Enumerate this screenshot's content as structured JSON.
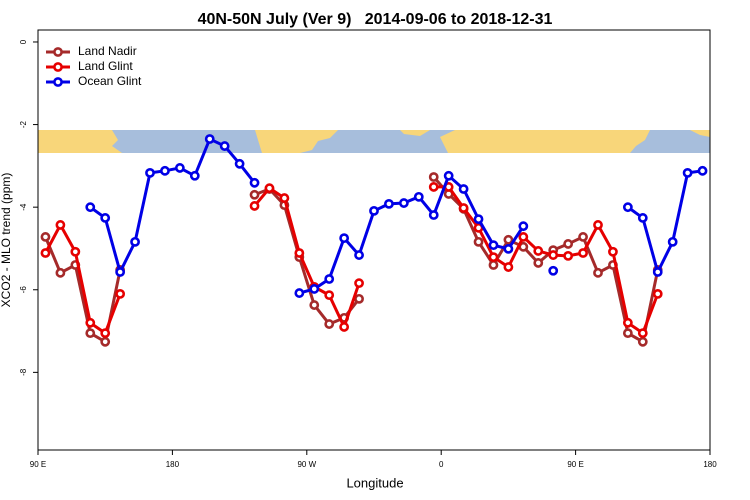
{
  "chart_data": {
    "type": "line",
    "title": "40N-50N July (Ver 9)   2014-09-06 to 2018-12-31",
    "x_label": "Longitude",
    "y_label": "XCO2 - MLO trend (ppm)",
    "x": [
      95,
      105,
      115,
      125,
      135,
      145,
      155,
      165,
      175,
      185,
      195,
      205,
      215,
      225,
      235,
      245,
      255,
      265,
      275,
      285,
      295,
      305,
      315,
      325,
      335,
      345,
      355,
      365,
      375,
      385,
      395,
      405,
      415,
      425,
      435,
      445,
      455,
      465,
      475,
      485,
      495,
      505,
      515,
      525,
      535
    ],
    "xlim": [
      90,
      540
    ],
    "xticks": [
      {
        "value": 90,
        "label": "90 E"
      },
      180,
      {
        "value": 270,
        "label": "90 W"
      },
      {
        "value": 360,
        "label": "0"
      },
      {
        "value": 450,
        "label": "90 E"
      },
      {
        "value": 540,
        "label": "180"
      }
    ],
    "ylim": [
      -9.88,
      0.29
    ],
    "yticks": [
      0,
      -2,
      -4,
      -6,
      -8
    ],
    "legend": "top-left",
    "series": [
      {
        "name": "Land Nadir",
        "color": "#a52a2a",
        "values": [
          -4.72,
          -5.59,
          -5.4,
          -7.05,
          -7.26,
          -5.52,
          null,
          null,
          null,
          null,
          null,
          null,
          null,
          null,
          -3.7,
          -3.56,
          -3.95,
          -5.21,
          -6.37,
          -6.83,
          -6.68,
          -6.22,
          null,
          null,
          null,
          null,
          -3.27,
          -3.68,
          -4.04,
          -4.84,
          -5.4,
          -4.79,
          -4.96,
          -5.35,
          -5.04,
          -4.89,
          -4.72,
          -5.59,
          -5.4,
          -7.05,
          -7.26,
          -5.52,
          null,
          null,
          null
        ]
      },
      {
        "name": "Land Glint",
        "color": "#e60000",
        "values": [
          -5.11,
          -4.43,
          -5.08,
          -6.8,
          -7.05,
          -6.1,
          null,
          null,
          null,
          null,
          null,
          null,
          null,
          null,
          -3.97,
          -3.54,
          -3.78,
          -5.11,
          -5.93,
          -6.13,
          -6.9,
          -5.84,
          null,
          null,
          null,
          null,
          -3.51,
          -3.51,
          -4.02,
          -4.5,
          -5.21,
          -5.45,
          -4.72,
          -5.06,
          -5.16,
          -5.18,
          -5.11,
          -4.43,
          -5.08,
          -6.8,
          -7.05,
          -6.1,
          null,
          null,
          null
        ]
      },
      {
        "name": "Ocean Glint",
        "color": "#0000e6",
        "values": [
          null,
          null,
          null,
          -4.0,
          -4.26,
          -5.57,
          -4.84,
          -3.17,
          -3.12,
          -3.05,
          -3.24,
          -2.35,
          -2.52,
          -2.95,
          -3.41,
          null,
          null,
          -6.08,
          -5.98,
          -5.74,
          -4.75,
          -5.16,
          -4.09,
          -3.92,
          -3.9,
          -3.75,
          -4.19,
          -3.24,
          -3.56,
          -4.29,
          -4.92,
          -5.01,
          -4.46,
          null,
          -5.54,
          null,
          null,
          null,
          null,
          -4.0,
          -4.26,
          -5.57,
          -4.84,
          -3.17,
          -3.12
        ]
      }
    ]
  }
}
